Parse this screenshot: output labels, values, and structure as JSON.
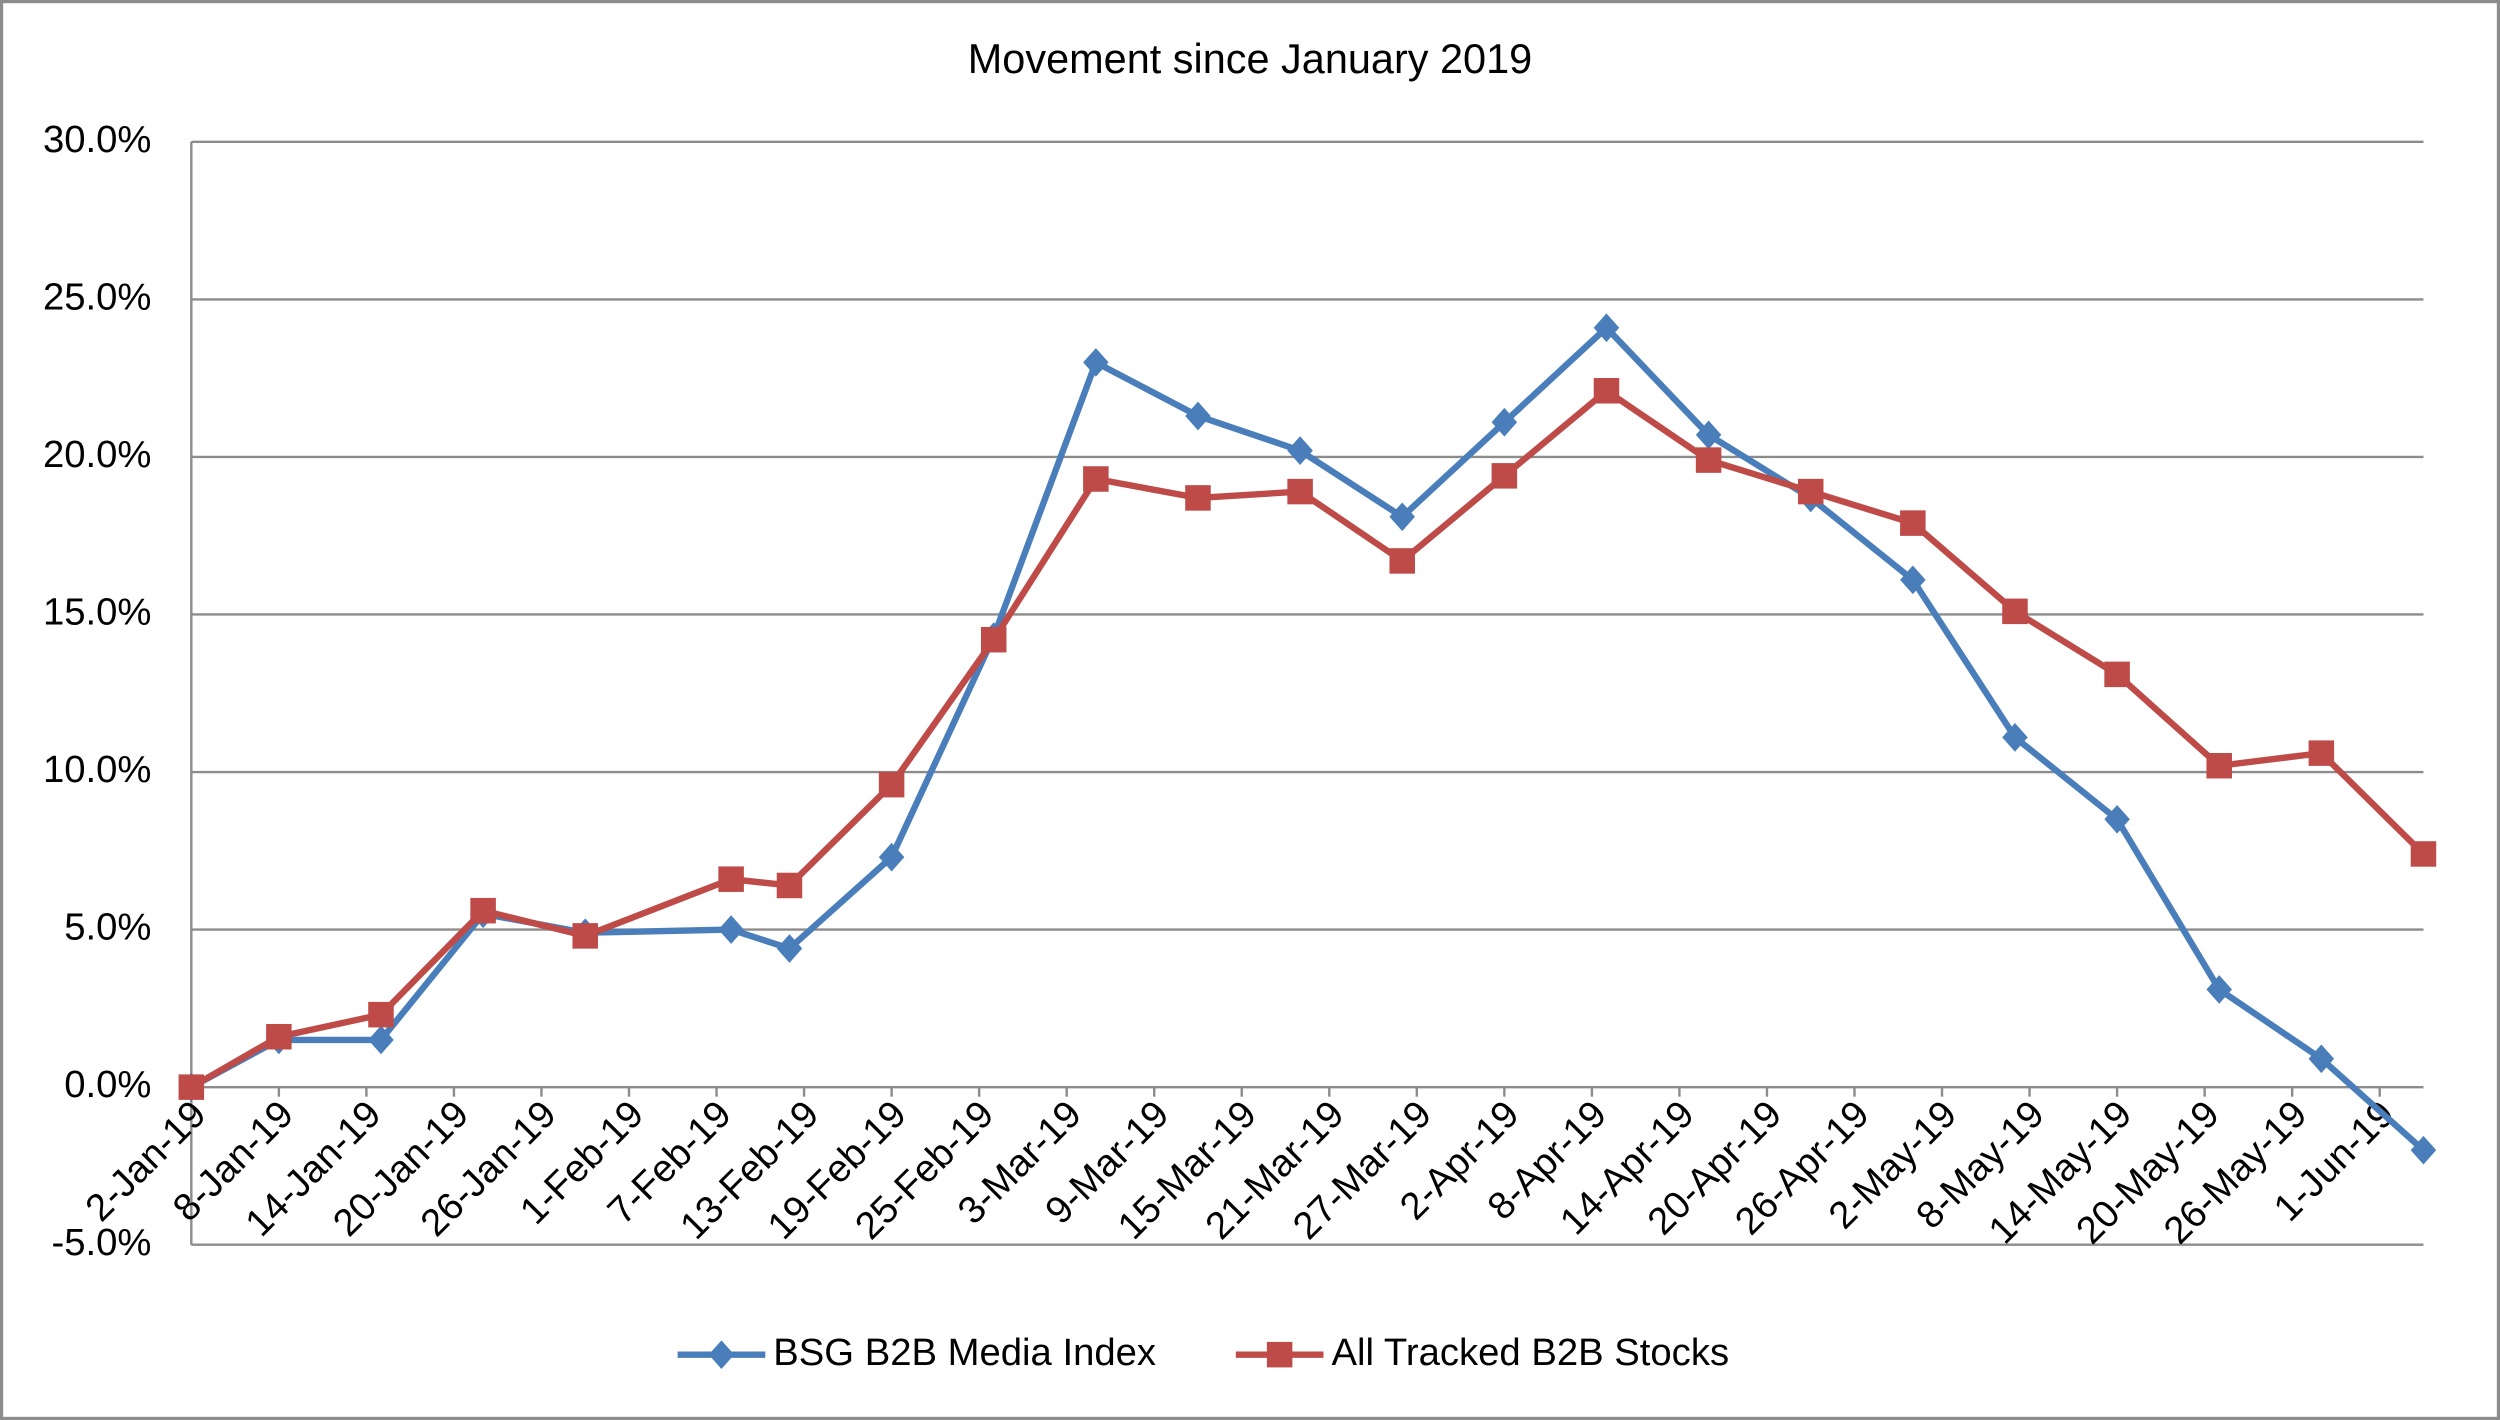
{
  "chart_data": {
    "type": "line",
    "title": "Movement since January 2019",
    "x": [
      "2019-01-02",
      "2019-01-08",
      "2019-01-15",
      "2019-01-22",
      "2019-01-29",
      "2019-02-08",
      "2019-02-12",
      "2019-02-19",
      "2019-02-26",
      "2019-03-05",
      "2019-03-12",
      "2019-03-19",
      "2019-03-26",
      "2019-04-02",
      "2019-04-09",
      "2019-04-16",
      "2019-04-23",
      "2019-04-30",
      "2019-05-07",
      "2019-05-14",
      "2019-05-21",
      "2019-05-28",
      "2019-06-04"
    ],
    "series": [
      {
        "name": "BSG B2B Media Index",
        "color": "#4a7ebb",
        "marker": "diamond",
        "values": [
          0,
          1.5,
          1.5,
          5.5,
          4.9,
          5.0,
          4.4,
          7.3,
          14.3,
          23.0,
          21.3,
          20.2,
          18.1,
          21.1,
          24.1,
          20.7,
          18.7,
          16.1,
          11.1,
          8.5,
          3.1,
          0.9,
          -2.0
        ]
      },
      {
        "name": "All Tracked B2B Stocks",
        "color": "#be4b48",
        "marker": "square",
        "values": [
          0,
          1.6,
          2.3,
          5.6,
          4.8,
          6.6,
          6.4,
          9.6,
          14.2,
          19.3,
          18.7,
          18.9,
          16.7,
          19.4,
          22.1,
          19.9,
          18.9,
          17.9,
          15.1,
          13.1,
          10.2,
          10.6,
          7.4
        ]
      }
    ],
    "xlim": [
      "2019-01-02",
      "2019-06-04"
    ],
    "xticks": [
      {
        "value": "2019-01-02",
        "label": "2-Jan-19"
      },
      {
        "value": "2019-01-08",
        "label": "8-Jan-19"
      },
      {
        "value": "2019-01-14",
        "label": "14-Jan-19"
      },
      {
        "value": "2019-01-20",
        "label": "20-Jan-19"
      },
      {
        "value": "2019-01-26",
        "label": "26-Jan-19"
      },
      {
        "value": "2019-02-01",
        "label": "1-Feb-19"
      },
      {
        "value": "2019-02-07",
        "label": "7-Feb-19"
      },
      {
        "value": "2019-02-13",
        "label": "13-Feb-19"
      },
      {
        "value": "2019-02-19",
        "label": "19-Feb-19"
      },
      {
        "value": "2019-02-25",
        "label": "25-Feb-19"
      },
      {
        "value": "2019-03-03",
        "label": "3-Mar-19"
      },
      {
        "value": "2019-03-09",
        "label": "9-Mar-19"
      },
      {
        "value": "2019-03-15",
        "label": "15-Mar-19"
      },
      {
        "value": "2019-03-21",
        "label": "21-Mar-19"
      },
      {
        "value": "2019-03-27",
        "label": "27-Mar-19"
      },
      {
        "value": "2019-04-02",
        "label": "2-Apr-19"
      },
      {
        "value": "2019-04-08",
        "label": "8-Apr-19"
      },
      {
        "value": "2019-04-14",
        "label": "14-Apr-19"
      },
      {
        "value": "2019-04-20",
        "label": "20-Apr-19"
      },
      {
        "value": "2019-04-26",
        "label": "26-Apr-19"
      },
      {
        "value": "2019-05-02",
        "label": "2-May-19"
      },
      {
        "value": "2019-05-08",
        "label": "8-May-19"
      },
      {
        "value": "2019-05-14",
        "label": "14-May-19"
      },
      {
        "value": "2019-05-20",
        "label": "20-May-19"
      },
      {
        "value": "2019-05-26",
        "label": "26-May-19"
      },
      {
        "value": "2019-06-01",
        "label": "1-Jun-19"
      }
    ],
    "ylim": [
      -5,
      30
    ],
    "yticks": [
      {
        "value": -5,
        "label": "-5.0%"
      },
      {
        "value": 0,
        "label": "0.0%"
      },
      {
        "value": 5,
        "label": "5.0%"
      },
      {
        "value": 10,
        "label": "10.0%"
      },
      {
        "value": 15,
        "label": "15.0%"
      },
      {
        "value": 20,
        "label": "20.0%"
      },
      {
        "value": 25,
        "label": "25.0%"
      },
      {
        "value": 30,
        "label": "30.0%"
      }
    ],
    "grid": true,
    "legend": "bottom"
  }
}
